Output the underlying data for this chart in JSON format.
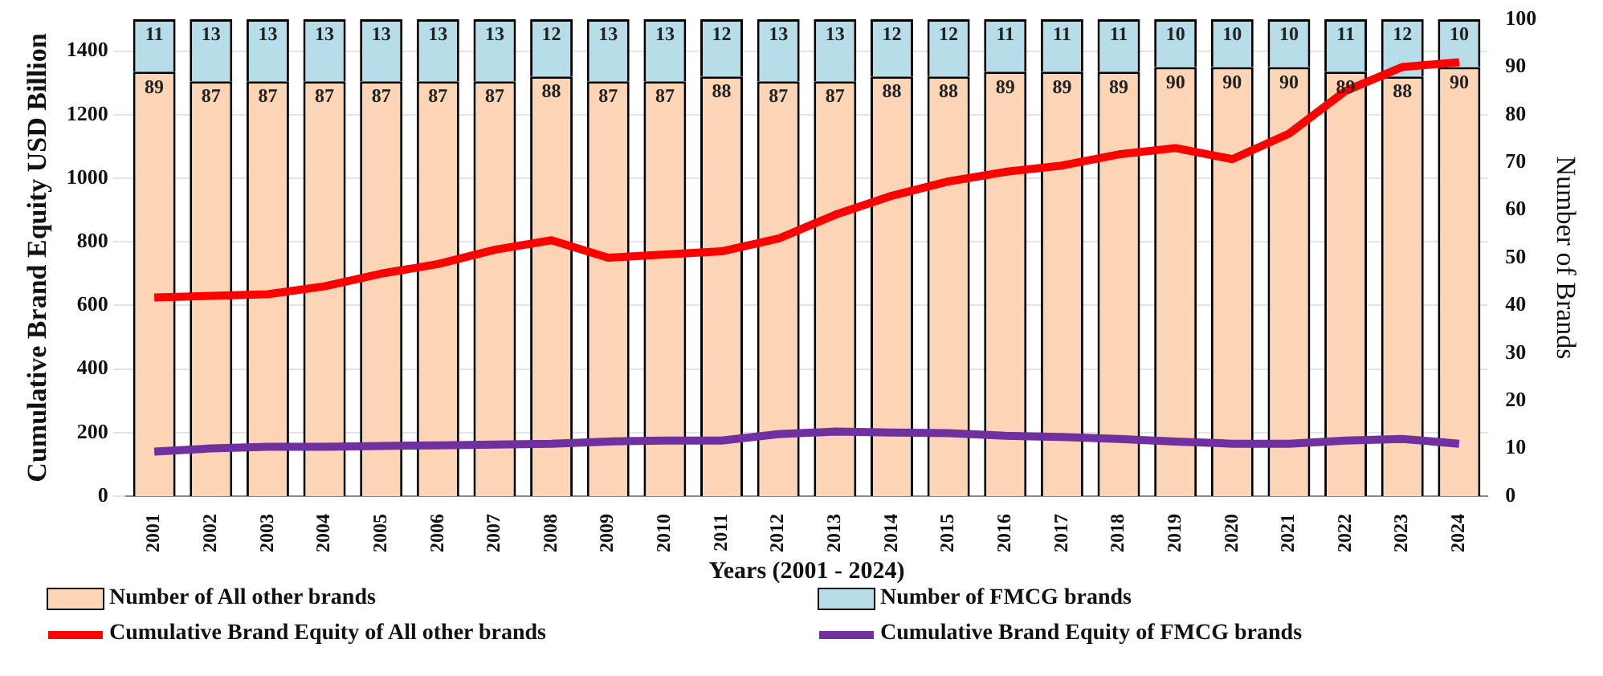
{
  "chart_data": {
    "type": "bar",
    "stacked": true,
    "xlabel": "Years (2001 - 2024)",
    "ylabel": "Cumulative Brand Equity USD Billion",
    "y2label": "Number of Brands",
    "categories": [
      "2001",
      "2002",
      "2003",
      "2004",
      "2005",
      "2006",
      "2007",
      "2008",
      "2009",
      "2010",
      "2011",
      "2012",
      "2013",
      "2014",
      "2015",
      "2016",
      "2017",
      "2018",
      "2019",
      "2020",
      "2021",
      "2022",
      "2023",
      "2024"
    ],
    "series": [
      {
        "name": "Number of All other brands",
        "axis": "y2",
        "color": "#fbd5b5",
        "values": [
          89,
          87,
          87,
          87,
          87,
          87,
          87,
          88,
          87,
          87,
          88,
          87,
          87,
          88,
          88,
          89,
          89,
          89,
          90,
          90,
          90,
          89,
          88,
          90
        ],
        "value_labels": [
          "89",
          "87",
          "87",
          "87",
          "87",
          "87",
          "87",
          "88",
          "87",
          "87",
          "88",
          "87",
          "87",
          "88",
          "88",
          "89",
          "89",
          "89",
          "90",
          "90",
          "90",
          "89",
          "88",
          "90"
        ]
      },
      {
        "name": "Number of FMCG brands",
        "axis": "y2",
        "color": "#b7dde8",
        "values": [
          11,
          13,
          13,
          13,
          13,
          13,
          13,
          12,
          13,
          13,
          12,
          13,
          13,
          12,
          12,
          11,
          11,
          11,
          10,
          10,
          10,
          11,
          12,
          10
        ],
        "value_labels": [
          "11",
          "13",
          "13",
          "13",
          "13",
          "13",
          "13",
          "12",
          "13",
          "13",
          "12",
          "13",
          "13",
          "12",
          "12",
          "11",
          "11",
          "11",
          "10",
          "10",
          "10",
          "11",
          "12",
          "10"
        ]
      },
      {
        "name": "Cumulative Brand Equity of All other brands",
        "type": "line",
        "axis": "y",
        "color": "#ff0000",
        "values": [
          625,
          630,
          635,
          660,
          700,
          730,
          775,
          805,
          750,
          760,
          770,
          810,
          885,
          945,
          990,
          1020,
          1040,
          1075,
          1095,
          1060,
          1140,
          1275,
          1350,
          1365
        ]
      },
      {
        "name": "Cumulative Brand Equity of FMCG brands",
        "type": "line",
        "axis": "y",
        "color": "#7030a0",
        "values": [
          140,
          150,
          155,
          155,
          158,
          160,
          162,
          165,
          172,
          175,
          175,
          195,
          203,
          200,
          198,
          190,
          186,
          180,
          172,
          165,
          165,
          175,
          180,
          165
        ]
      }
    ],
    "ylim": [
      0,
      1500
    ],
    "yticks": [
      0,
      200,
      400,
      600,
      800,
      1000,
      1200,
      1400
    ],
    "y2lim": [
      0,
      100
    ],
    "y2ticks": [
      0,
      10,
      20,
      30,
      40,
      50,
      60,
      70,
      80,
      90,
      100
    ],
    "grid": "y",
    "legend": "bottom",
    "marker": "none",
    "line_style": "solid"
  }
}
